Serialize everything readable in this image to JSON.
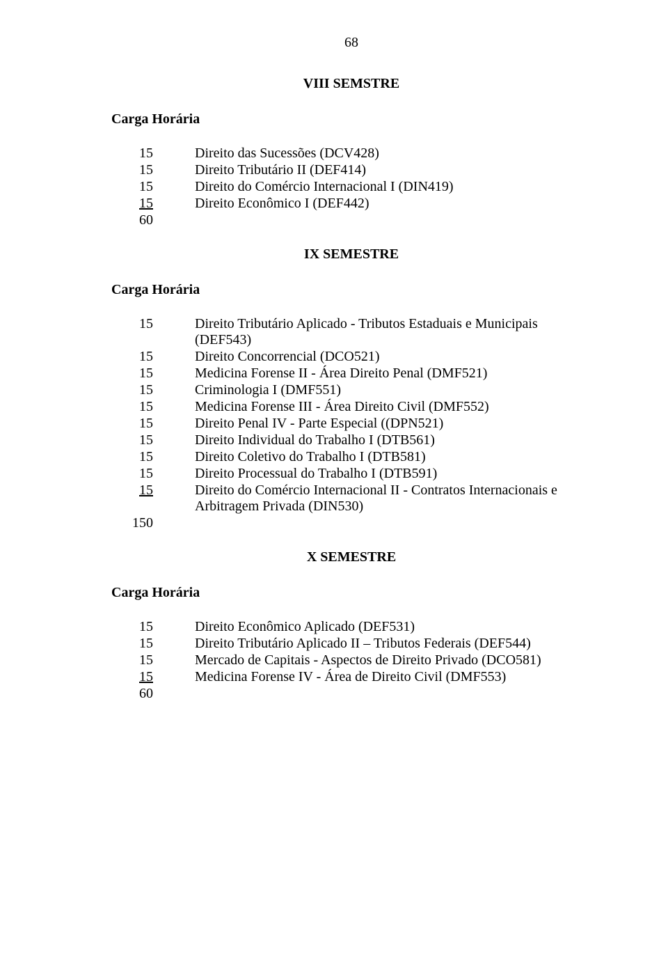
{
  "page_number": "68",
  "sections": [
    {
      "title": "VIII SEMSTRE",
      "header": "Carga Horária",
      "items": [
        {
          "hours": "15",
          "desc": "Direito das Sucessões   (DCV428)",
          "underline": false
        },
        {
          "hours": "15",
          "desc": "Direito Tributário II   (DEF414)",
          "underline": false
        },
        {
          "hours": "15",
          "desc": "Direito do Comércio Internacional I  (DIN419)",
          "underline": false
        },
        {
          "hours": "15",
          "desc": "Direito Econômico I  (DEF442)",
          "underline": true
        },
        {
          "hours": "60",
          "desc": "",
          "underline": false
        }
      ]
    },
    {
      "title": "IX SEMESTRE",
      "header": "Carga Horária",
      "items": [
        {
          "hours": "15",
          "desc": "Direito Tributário Aplicado - Tributos Estaduais e Municipais  (DEF543)",
          "underline": false
        },
        {
          "hours": "15",
          "desc": "Direito Concorrencial  (DCO521)",
          "underline": false
        },
        {
          "hours": "15",
          "desc": "Medicina Forense II - Área Direito Penal  (DMF521)",
          "underline": false
        },
        {
          "hours": "15",
          "desc": "Criminologia I  (DMF551)",
          "underline": false
        },
        {
          "hours": "15",
          "desc": "Medicina Forense III - Área Direito Civil (DMF552)",
          "underline": false
        },
        {
          "hours": "15",
          "desc": "Direito Penal IV - Parte Especial  ((DPN521)",
          "underline": false
        },
        {
          "hours": "15",
          "desc": "Direito Individual do Trabalho I  (DTB561)",
          "underline": false
        },
        {
          "hours": "15",
          "desc": "Direito Coletivo do Trabalho I  (DTB581)",
          "underline": false
        },
        {
          "hours": "15",
          "desc": "Direito Processual do Trabalho I   (DTB591)",
          "underline": false
        },
        {
          "hours": "15",
          "desc": "Direito do Comércio Internacional II - Contratos Internacionais e Arbitragem Privada  (DIN530)",
          "underline": true
        },
        {
          "hours": "150",
          "desc": "",
          "underline": false
        }
      ]
    },
    {
      "title": "X SEMESTRE",
      "header": "Carga Horária",
      "items": [
        {
          "hours": "15",
          "desc": "Direito Econômico Aplicado   (DEF531)",
          "underline": false
        },
        {
          "hours": "15",
          "desc": "Direito Tributário Aplicado II – Tributos Federais (DEF544)",
          "underline": false
        },
        {
          "hours": "15",
          "desc": "Mercado de Capitais - Aspectos de Direito Privado  (DCO581)",
          "underline": false
        },
        {
          "hours": "15",
          "desc": "Medicina Forense IV - Área de Direito Civil  (DMF553)",
          "underline": true
        },
        {
          "hours": "60",
          "desc": "",
          "underline": false
        }
      ]
    }
  ]
}
